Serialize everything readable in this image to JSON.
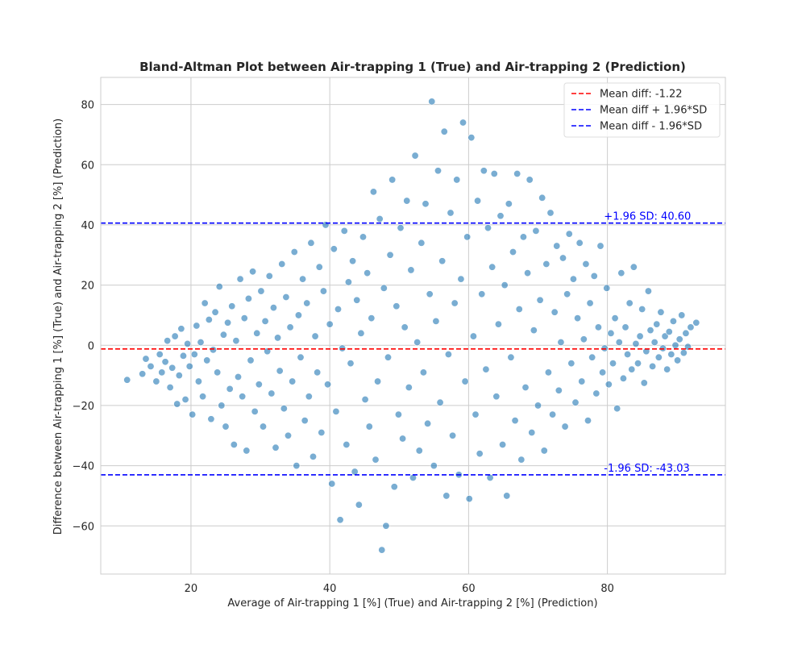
{
  "chart_data": {
    "type": "scatter",
    "title": "Bland-Altman Plot between Air-trapping 1 (True) and Air-trapping 2 (Prediction)",
    "xlabel": "Average of Air-trapping 1 [%] (True) and Air-trapping 2 [%] (Prediction)",
    "ylabel": "Difference between Air-trapping 1 [%] (True) and Air-trapping 2 [%] (Prediction)",
    "xlim": [
      7,
      97
    ],
    "ylim": [
      -76,
      89
    ],
    "xticks": [
      20,
      40,
      60,
      80
    ],
    "yticks": [
      -60,
      -40,
      -20,
      0,
      20,
      40,
      60,
      80
    ],
    "grid": true,
    "legend_position": "top-right",
    "point_color": "#1f77b4",
    "mean_line_color": "#ff0000",
    "sd_line_color": "#0000ff",
    "reference_lines": [
      {
        "label": "Mean diff: -1.22",
        "y": -1.22,
        "color": "#ff0000"
      },
      {
        "label": "Mean diff + 1.96*SD",
        "y": 40.6,
        "color": "#0000ff"
      },
      {
        "label": "Mean diff - 1.96*SD",
        "y": -43.03,
        "color": "#0000ff"
      }
    ],
    "annotations": [
      {
        "text": "+1.96 SD: 40.60",
        "x": 79.5,
        "y": 40.6
      },
      {
        "text": "-1.96 SD: -43.03",
        "x": 79.5,
        "y": -43.03
      }
    ],
    "points": [
      [
        10.8,
        -11.5
      ],
      [
        13.0,
        -9.5
      ],
      [
        13.5,
        -4.5
      ],
      [
        14.2,
        -7.0
      ],
      [
        15.0,
        -12.0
      ],
      [
        15.5,
        -3.0
      ],
      [
        15.8,
        -9.0
      ],
      [
        16.3,
        -5.5
      ],
      [
        16.6,
        1.5
      ],
      [
        17.0,
        -14.0
      ],
      [
        17.3,
        -7.5
      ],
      [
        17.7,
        3.0
      ],
      [
        18.0,
        -19.5
      ],
      [
        18.3,
        -10.0
      ],
      [
        18.6,
        5.5
      ],
      [
        18.9,
        -3.5
      ],
      [
        19.2,
        -18.0
      ],
      [
        19.5,
        0.5
      ],
      [
        19.8,
        -7.0
      ],
      [
        20.2,
        -23.0
      ],
      [
        20.5,
        -3.0
      ],
      [
        20.8,
        6.5
      ],
      [
        21.1,
        -12.0
      ],
      [
        21.4,
        1.0
      ],
      [
        21.7,
        -17.0
      ],
      [
        22.0,
        14.0
      ],
      [
        22.3,
        -5.0
      ],
      [
        22.6,
        8.5
      ],
      [
        22.9,
        -24.5
      ],
      [
        23.2,
        -1.5
      ],
      [
        23.5,
        11.0
      ],
      [
        23.8,
        -9.0
      ],
      [
        24.1,
        19.5
      ],
      [
        24.4,
        -20.0
      ],
      [
        24.7,
        3.5
      ],
      [
        25.0,
        -27.0
      ],
      [
        25.3,
        7.5
      ],
      [
        25.6,
        -14.5
      ],
      [
        25.9,
        13.0
      ],
      [
        26.2,
        -33.0
      ],
      [
        26.5,
        1.5
      ],
      [
        26.8,
        -10.5
      ],
      [
        27.1,
        22.0
      ],
      [
        27.4,
        -17.0
      ],
      [
        27.7,
        9.0
      ],
      [
        28.0,
        -35.0
      ],
      [
        28.3,
        15.5
      ],
      [
        28.6,
        -5.0
      ],
      [
        28.9,
        24.5
      ],
      [
        29.2,
        -22.0
      ],
      [
        29.5,
        4.0
      ],
      [
        29.8,
        -13.0
      ],
      [
        30.1,
        18.0
      ],
      [
        30.4,
        -27.0
      ],
      [
        30.7,
        8.0
      ],
      [
        31.0,
        -2.0
      ],
      [
        31.3,
        23.0
      ],
      [
        31.6,
        -16.0
      ],
      [
        31.9,
        12.5
      ],
      [
        32.2,
        -34.0
      ],
      [
        32.5,
        2.5
      ],
      [
        32.8,
        -8.5
      ],
      [
        33.1,
        27.0
      ],
      [
        33.4,
        -21.0
      ],
      [
        33.7,
        16.0
      ],
      [
        34.0,
        -30.0
      ],
      [
        34.3,
        6.0
      ],
      [
        34.6,
        -12.0
      ],
      [
        34.9,
        31.0
      ],
      [
        35.2,
        -40.0
      ],
      [
        35.5,
        10.0
      ],
      [
        35.8,
        -4.0
      ],
      [
        36.1,
        22.0
      ],
      [
        36.4,
        -25.0
      ],
      [
        36.7,
        14.0
      ],
      [
        37.0,
        -17.0
      ],
      [
        37.3,
        34.0
      ],
      [
        37.6,
        -37.0
      ],
      [
        37.9,
        3.0
      ],
      [
        38.2,
        -9.0
      ],
      [
        38.5,
        26.0
      ],
      [
        38.8,
        -29.0
      ],
      [
        39.1,
        18.0
      ],
      [
        39.4,
        40.0
      ],
      [
        39.7,
        -13.0
      ],
      [
        40.0,
        7.0
      ],
      [
        40.3,
        -46.0
      ],
      [
        40.6,
        32.0
      ],
      [
        40.9,
        -22.0
      ],
      [
        41.2,
        12.0
      ],
      [
        41.5,
        -58.0
      ],
      [
        41.8,
        -1.0
      ],
      [
        42.1,
        38.0
      ],
      [
        42.4,
        -33.0
      ],
      [
        42.7,
        21.0
      ],
      [
        43.0,
        -6.0
      ],
      [
        43.3,
        28.0
      ],
      [
        43.6,
        -42.0
      ],
      [
        43.9,
        15.0
      ],
      [
        44.2,
        -53.0
      ],
      [
        44.5,
        4.0
      ],
      [
        44.8,
        36.0
      ],
      [
        45.1,
        -18.0
      ],
      [
        45.4,
        24.0
      ],
      [
        45.7,
        -27.0
      ],
      [
        46.0,
        9.0
      ],
      [
        46.3,
        51.0
      ],
      [
        46.6,
        -38.0
      ],
      [
        46.9,
        -12.0
      ],
      [
        47.2,
        42.0
      ],
      [
        47.5,
        -68.0
      ],
      [
        47.8,
        19.0
      ],
      [
        48.1,
        -60.0
      ],
      [
        48.4,
        -4.0
      ],
      [
        48.7,
        30.0
      ],
      [
        49.0,
        55.0
      ],
      [
        49.3,
        -47.0
      ],
      [
        49.6,
        13.0
      ],
      [
        49.9,
        -23.0
      ],
      [
        50.2,
        39.0
      ],
      [
        50.5,
        -31.0
      ],
      [
        50.8,
        6.0
      ],
      [
        51.1,
        48.0
      ],
      [
        51.4,
        -14.0
      ],
      [
        51.7,
        25.0
      ],
      [
        52.0,
        -44.0
      ],
      [
        52.3,
        63.0
      ],
      [
        52.6,
        1.0
      ],
      [
        52.9,
        -35.0
      ],
      [
        53.2,
        34.0
      ],
      [
        53.5,
        -9.0
      ],
      [
        53.8,
        47.0
      ],
      [
        54.1,
        -26.0
      ],
      [
        54.4,
        17.0
      ],
      [
        54.7,
        81.0
      ],
      [
        55.0,
        -40.0
      ],
      [
        55.3,
        8.0
      ],
      [
        55.6,
        58.0
      ],
      [
        55.9,
        -19.0
      ],
      [
        56.2,
        28.0
      ],
      [
        56.5,
        71.0
      ],
      [
        56.8,
        -50.0
      ],
      [
        57.1,
        -3.0
      ],
      [
        57.4,
        44.0
      ],
      [
        57.7,
        -30.0
      ],
      [
        58.0,
        14.0
      ],
      [
        58.3,
        55.0
      ],
      [
        58.6,
        -43.0
      ],
      [
        58.9,
        22.0
      ],
      [
        59.2,
        74.0
      ],
      [
        59.5,
        -12.0
      ],
      [
        59.8,
        36.0
      ],
      [
        60.1,
        -51.0
      ],
      [
        60.4,
        69.0
      ],
      [
        60.7,
        3.0
      ],
      [
        61.0,
        -23.0
      ],
      [
        61.3,
        48.0
      ],
      [
        61.6,
        -36.0
      ],
      [
        61.9,
        17.0
      ],
      [
        62.2,
        58.0
      ],
      [
        62.5,
        -8.0
      ],
      [
        62.8,
        39.0
      ],
      [
        63.1,
        -44.0
      ],
      [
        63.4,
        26.0
      ],
      [
        63.7,
        57.0
      ],
      [
        64.0,
        -17.0
      ],
      [
        64.3,
        7.0
      ],
      [
        64.6,
        43.0
      ],
      [
        64.9,
        -33.0
      ],
      [
        65.2,
        20.0
      ],
      [
        65.5,
        -50.0
      ],
      [
        65.8,
        47.0
      ],
      [
        66.1,
        -4.0
      ],
      [
        66.4,
        31.0
      ],
      [
        66.7,
        -25.0
      ],
      [
        67.0,
        57.0
      ],
      [
        67.3,
        12.0
      ],
      [
        67.6,
        -38.0
      ],
      [
        67.9,
        36.0
      ],
      [
        68.2,
        -14.0
      ],
      [
        68.5,
        24.0
      ],
      [
        68.8,
        55.0
      ],
      [
        69.1,
        -29.0
      ],
      [
        69.4,
        5.0
      ],
      [
        69.7,
        38.0
      ],
      [
        70.0,
        -20.0
      ],
      [
        70.3,
        15.0
      ],
      [
        70.6,
        49.0
      ],
      [
        70.9,
        -35.0
      ],
      [
        71.2,
        27.0
      ],
      [
        71.5,
        -9.0
      ],
      [
        71.8,
        44.0
      ],
      [
        72.1,
        -23.0
      ],
      [
        72.4,
        11.0
      ],
      [
        72.7,
        33.0
      ],
      [
        73.0,
        -15.0
      ],
      [
        73.3,
        1.0
      ],
      [
        73.6,
        29.0
      ],
      [
        73.9,
        -27.0
      ],
      [
        74.2,
        17.0
      ],
      [
        74.5,
        37.0
      ],
      [
        74.8,
        -6.0
      ],
      [
        75.1,
        22.0
      ],
      [
        75.4,
        -19.0
      ],
      [
        75.7,
        9.0
      ],
      [
        76.0,
        34.0
      ],
      [
        76.3,
        -12.0
      ],
      [
        76.6,
        2.0
      ],
      [
        76.9,
        27.0
      ],
      [
        77.2,
        -25.0
      ],
      [
        77.5,
        14.0
      ],
      [
        77.8,
        -4.0
      ],
      [
        78.1,
        23.0
      ],
      [
        78.4,
        -16.0
      ],
      [
        78.7,
        6.0
      ],
      [
        79.0,
        33.0
      ],
      [
        79.3,
        -9.0
      ],
      [
        79.6,
        -1.0
      ],
      [
        79.9,
        19.0
      ],
      [
        80.2,
        -13.0
      ],
      [
        80.5,
        4.0
      ],
      [
        80.8,
        -6.0
      ],
      [
        81.1,
        9.0
      ],
      [
        81.4,
        -21.0
      ],
      [
        81.7,
        1.0
      ],
      [
        82.0,
        24.0
      ],
      [
        82.3,
        -11.0
      ],
      [
        82.6,
        6.0
      ],
      [
        82.9,
        -3.0
      ],
      [
        83.2,
        14.0
      ],
      [
        83.5,
        -8.0
      ],
      [
        83.8,
        26.0
      ],
      [
        84.1,
        0.5
      ],
      [
        84.4,
        -6.0
      ],
      [
        84.7,
        3.0
      ],
      [
        85.0,
        12.0
      ],
      [
        85.3,
        -12.5
      ],
      [
        85.6,
        -2.0
      ],
      [
        85.9,
        18.0
      ],
      [
        86.2,
        5.0
      ],
      [
        86.5,
        -7.0
      ],
      [
        86.8,
        1.0
      ],
      [
        87.1,
        7.0
      ],
      [
        87.4,
        -4.0
      ],
      [
        87.7,
        11.0
      ],
      [
        88.0,
        -1.0
      ],
      [
        88.3,
        3.0
      ],
      [
        88.6,
        -8.0
      ],
      [
        88.9,
        4.5
      ],
      [
        89.2,
        -3.0
      ],
      [
        89.5,
        8.0
      ],
      [
        89.8,
        0.0
      ],
      [
        90.1,
        -5.0
      ],
      [
        90.4,
        2.0
      ],
      [
        90.7,
        10.0
      ],
      [
        91.0,
        -2.5
      ],
      [
        91.3,
        4.0
      ],
      [
        91.6,
        -0.5
      ],
      [
        92.0,
        6.0
      ],
      [
        92.8,
        7.5
      ]
    ]
  }
}
